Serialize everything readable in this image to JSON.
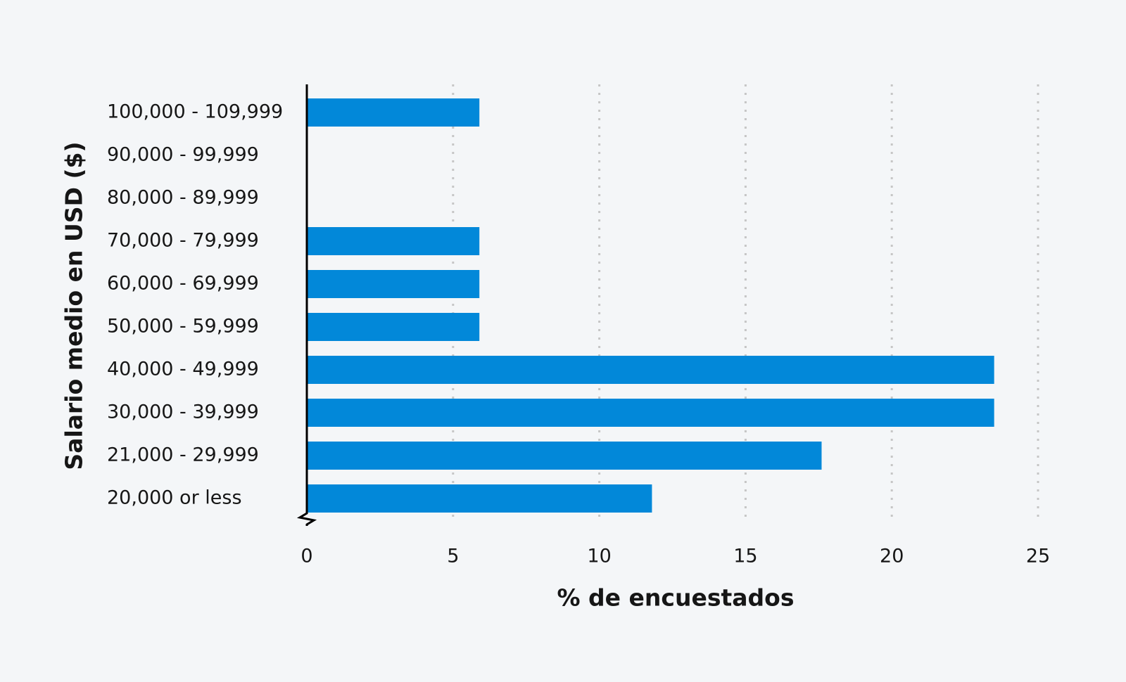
{
  "chart_data": {
    "type": "hbar",
    "x_label": "% de encuestados",
    "y_label": "Salario medio en USD ($)",
    "categories": [
      "100,000 - 109,999",
      "90,000 - 99,999",
      "80,000 - 89,999",
      "70,000 - 79,999",
      "60,000 - 69,999",
      "50,000 - 59,999",
      "40,000 - 49,999",
      "30,000 - 39,999",
      "21,000 - 29,999",
      "20,000 or less"
    ],
    "values": [
      5.9,
      0,
      0,
      5.9,
      5.9,
      5.9,
      23.5,
      23.5,
      17.6,
      11.8
    ],
    "color": "#0288d9",
    "xlim": [
      0,
      25
    ],
    "xticks": [
      0,
      5,
      10,
      15,
      20,
      25
    ],
    "grid": true
  }
}
